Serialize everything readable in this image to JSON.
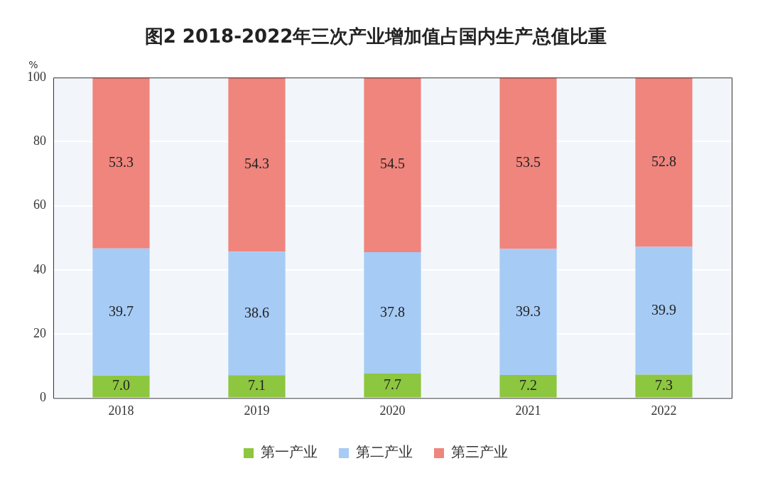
{
  "chart_data": {
    "type": "bar",
    "title": "图2 2018-2022年三次产业增加值占国内生产总值比重",
    "ylabel": "%",
    "categories": [
      "2018",
      "2019",
      "2020",
      "2021",
      "2022"
    ],
    "stacked": true,
    "series": [
      {
        "name": "第一产业",
        "color": "#8dc63f",
        "values": [
          7.0,
          7.1,
          7.7,
          7.2,
          7.3
        ],
        "value_labels": [
          "7.0",
          "7.1",
          "7.7",
          "7.2",
          "7.3"
        ]
      },
      {
        "name": "第二产业",
        "color": "#a6cbf5",
        "values": [
          39.7,
          38.6,
          37.8,
          39.3,
          39.9
        ],
        "value_labels": [
          "39.7",
          "38.6",
          "37.8",
          "39.3",
          "39.9"
        ]
      },
      {
        "name": "第三产业",
        "color": "#ef857d",
        "values": [
          53.3,
          54.3,
          54.5,
          53.5,
          52.8
        ],
        "value_labels": [
          "53.3",
          "54.3",
          "54.5",
          "53.5",
          "52.8"
        ]
      }
    ],
    "ylim": [
      0,
      100
    ],
    "yticks": [
      0,
      20,
      40,
      60,
      80,
      100
    ],
    "grid": "y",
    "legend": "bottom"
  }
}
